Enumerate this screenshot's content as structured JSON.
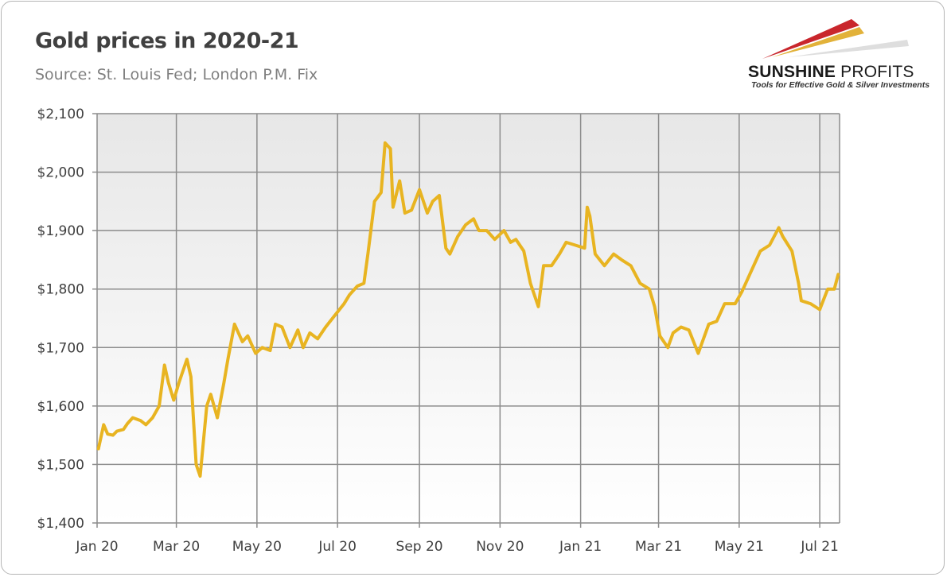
{
  "header": {
    "title": "Gold prices in 2020-21",
    "subtitle": "Source: St. Louis Fed; London P.M. Fix"
  },
  "logo": {
    "name_bold": "SUNSHINE",
    "name_light": " PROFITS",
    "tagline": "Tools for Effective Gold & Silver Investments",
    "colors": [
      "#c9262c",
      "#e2b23a",
      "#d9d9d9"
    ]
  },
  "chart_data": {
    "type": "line",
    "title": "Gold prices in 2020-21",
    "xlabel": "",
    "ylabel": "",
    "ylim": [
      1400,
      2100
    ],
    "y_ticks": [
      1400,
      1500,
      1600,
      1700,
      1800,
      1900,
      2000,
      2100
    ],
    "y_tick_labels": [
      "$1,400",
      "$1,500",
      "$1,600",
      "$1,700",
      "$1,800",
      "$1,900",
      "$2,000",
      "$2,100"
    ],
    "x_ticks": [
      "2020-01-01",
      "2020-03-01",
      "2020-05-01",
      "2020-07-01",
      "2020-09-01",
      "2020-11-01",
      "2021-01-01",
      "2021-03-01",
      "2021-05-01",
      "2021-07-01"
    ],
    "x_tick_labels": [
      "Jan 20",
      "Mar 20",
      "May 20",
      "Jul 20",
      "Sep 20",
      "Nov 20",
      "Jan 21",
      "Mar 21",
      "May 21",
      "Jul 21"
    ],
    "xlim": [
      "2020-01-01",
      "2021-07-16"
    ],
    "grid": true,
    "line_color": "#e8b421",
    "series": [
      {
        "name": "",
        "x": [
          "2020-01-02",
          "2020-01-06",
          "2020-01-09",
          "2020-01-13",
          "2020-01-16",
          "2020-01-21",
          "2020-01-24",
          "2020-01-28",
          "2020-02-03",
          "2020-02-07",
          "2020-02-12",
          "2020-02-17",
          "2020-02-21",
          "2020-02-24",
          "2020-02-28",
          "2020-03-03",
          "2020-03-09",
          "2020-03-12",
          "2020-03-16",
          "2020-03-19",
          "2020-03-24",
          "2020-03-27",
          "2020-04-01",
          "2020-04-06",
          "2020-04-09",
          "2020-04-14",
          "2020-04-20",
          "2020-04-24",
          "2020-04-30",
          "2020-05-05",
          "2020-05-11",
          "2020-05-15",
          "2020-05-20",
          "2020-05-26",
          "2020-06-01",
          "2020-06-05",
          "2020-06-10",
          "2020-06-16",
          "2020-06-22",
          "2020-06-29",
          "2020-07-06",
          "2020-07-10",
          "2020-07-16",
          "2020-07-21",
          "2020-07-24",
          "2020-07-29",
          "2020-08-03",
          "2020-08-06",
          "2020-08-10",
          "2020-08-12",
          "2020-08-17",
          "2020-08-21",
          "2020-08-26",
          "2020-09-01",
          "2020-09-07",
          "2020-09-11",
          "2020-09-16",
          "2020-09-21",
          "2020-09-24",
          "2020-09-30",
          "2020-10-06",
          "2020-10-12",
          "2020-10-16",
          "2020-10-22",
          "2020-10-28",
          "2020-11-04",
          "2020-11-09",
          "2020-11-13",
          "2020-11-19",
          "2020-11-24",
          "2020-11-30",
          "2020-12-04",
          "2020-12-10",
          "2020-12-16",
          "2020-12-21",
          "2020-12-28",
          "2021-01-04",
          "2021-01-06",
          "2021-01-08",
          "2021-01-12",
          "2021-01-19",
          "2021-01-26",
          "2021-02-01",
          "2021-02-08",
          "2021-02-15",
          "2021-02-22",
          "2021-02-26",
          "2021-03-02",
          "2021-03-08",
          "2021-03-12",
          "2021-03-18",
          "2021-03-24",
          "2021-03-31",
          "2021-04-08",
          "2021-04-14",
          "2021-04-20",
          "2021-04-28",
          "2021-05-03",
          "2021-05-10",
          "2021-05-17",
          "2021-05-24",
          "2021-05-31",
          "2021-06-03",
          "2021-06-10",
          "2021-06-15",
          "2021-06-17",
          "2021-06-24",
          "2021-07-01",
          "2021-07-07",
          "2021-07-12",
          "2021-07-15"
        ],
        "values": [
          1527,
          1568,
          1552,
          1550,
          1557,
          1560,
          1570,
          1580,
          1575,
          1568,
          1580,
          1600,
          1670,
          1640,
          1610,
          1640,
          1680,
          1650,
          1500,
          1480,
          1600,
          1620,
          1580,
          1640,
          1680,
          1740,
          1710,
          1720,
          1690,
          1700,
          1695,
          1740,
          1735,
          1700,
          1730,
          1700,
          1725,
          1715,
          1735,
          1755,
          1775,
          1790,
          1805,
          1810,
          1860,
          1950,
          1965,
          2050,
          2040,
          1940,
          1985,
          1930,
          1935,
          1970,
          1930,
          1950,
          1960,
          1870,
          1860,
          1890,
          1910,
          1920,
          1900,
          1900,
          1885,
          1900,
          1880,
          1885,
          1865,
          1810,
          1770,
          1840,
          1840,
          1860,
          1880,
          1875,
          1870,
          1940,
          1925,
          1860,
          1840,
          1860,
          1850,
          1840,
          1810,
          1800,
          1770,
          1720,
          1700,
          1725,
          1735,
          1730,
          1690,
          1740,
          1745,
          1775,
          1775,
          1795,
          1830,
          1865,
          1875,
          1905,
          1890,
          1865,
          1810,
          1780,
          1775,
          1765,
          1800,
          1800,
          1825
        ]
      }
    ]
  }
}
